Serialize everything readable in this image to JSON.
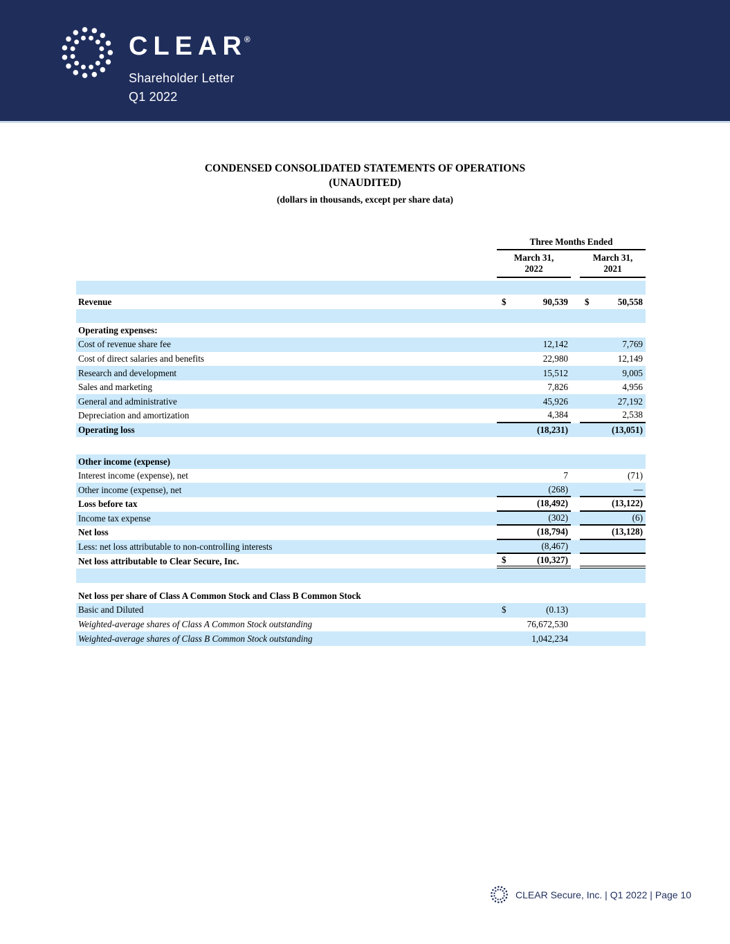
{
  "colors": {
    "navy": "#1f2d5b",
    "row-blue": "#cbe9fa"
  },
  "header": {
    "brand": "CLEAR",
    "registered": "®",
    "subtitle_line1": "Shareholder Letter",
    "subtitle_line2": "Q1 2022"
  },
  "title": {
    "line1": "CONDENSED CONSOLIDATED STATEMENTS OF OPERATIONS",
    "line2": "(UNAUDITED)",
    "line3": "(dollars in thousands, except per share data)"
  },
  "table": {
    "period_header": "Three Months Ended",
    "columns": [
      {
        "line1": "March 31,",
        "line2": "2022"
      },
      {
        "line1": "March 31,",
        "line2": "2021"
      }
    ],
    "rows": [
      {
        "type": "spacer",
        "shade": "blue"
      },
      {
        "label": "Revenue",
        "bold": true,
        "shade": "white",
        "d1": "$",
        "v1": "90,539",
        "d2": "$",
        "v2": "50,558"
      },
      {
        "type": "spacer",
        "shade": "blue"
      },
      {
        "label": "Operating expenses:",
        "bold": true,
        "shade": "white"
      },
      {
        "label": "Cost of revenue share fee",
        "shade": "blue",
        "v1": "12,142",
        "v2": "7,769"
      },
      {
        "label": "Cost of direct salaries and benefits",
        "shade": "white",
        "v1": "22,980",
        "v2": "12,149"
      },
      {
        "label": "Research and development",
        "shade": "blue",
        "v1": "15,512",
        "v2": "9,005"
      },
      {
        "label": "Sales and marketing",
        "shade": "white",
        "v1": "7,826",
        "v2": "4,956"
      },
      {
        "label": "General and administrative",
        "shade": "blue",
        "v1": "45,926",
        "v2": "27,192"
      },
      {
        "label": "Depreciation and amortization",
        "shade": "white",
        "v1": "4,384",
        "v2": "2,538",
        "underline": "single"
      },
      {
        "label": "Operating loss",
        "bold": true,
        "shade": "blue",
        "v1": "(18,231)",
        "v2": "(13,051)"
      },
      {
        "type": "gap",
        "h": 25
      },
      {
        "label": "Other income (expense)",
        "bold": true,
        "shade": "blue"
      },
      {
        "label": "Interest income (expense), net",
        "shade": "white",
        "v1": "7",
        "v2": "(71)"
      },
      {
        "label": "Other income (expense), net",
        "shade": "blue",
        "v1": "(268)",
        "v2": "—",
        "underline": "single"
      },
      {
        "label": "Loss before tax",
        "bold": true,
        "shade": "white",
        "v1": "(18,492)",
        "v2": "(13,122)",
        "underline": "single"
      },
      {
        "label": "Income tax expense",
        "shade": "blue",
        "v1": "(302)",
        "v2": "(6)",
        "underline": "single"
      },
      {
        "label": "Net loss",
        "bold": true,
        "shade": "white",
        "v1": "(18,794)",
        "v2": "(13,128)",
        "underline": "single"
      },
      {
        "label": "Less: net loss attributable to non-controlling interests",
        "shade": "blue",
        "v1": "(8,467)",
        "underline": "single"
      },
      {
        "label": "Net loss attributable to Clear Secure, Inc.",
        "bold": true,
        "shade": "white",
        "d1": "$",
        "v1": "(10,327)",
        "underline": "double"
      },
      {
        "type": "spacer",
        "shade": "blue"
      },
      {
        "type": "gap",
        "h": 9
      },
      {
        "label": "Net loss per share of Class A Common Stock and Class B Common Stock",
        "bold": true,
        "shade": "white"
      },
      {
        "label": "Basic and Diluted",
        "shade": "blue",
        "d1": "$",
        "v1": "(0.13)"
      },
      {
        "label": "Weighted-average shares of Class A Common Stock outstanding",
        "italic": true,
        "shade": "white",
        "v1": "76,672,530"
      },
      {
        "label": "Weighted-average shares of Class B Common Stock outstanding",
        "italic": true,
        "shade": "blue",
        "v1": "1,042,234"
      }
    ]
  },
  "footer": {
    "text": "CLEAR Secure, Inc. | Q1 2022 | Page 10"
  }
}
